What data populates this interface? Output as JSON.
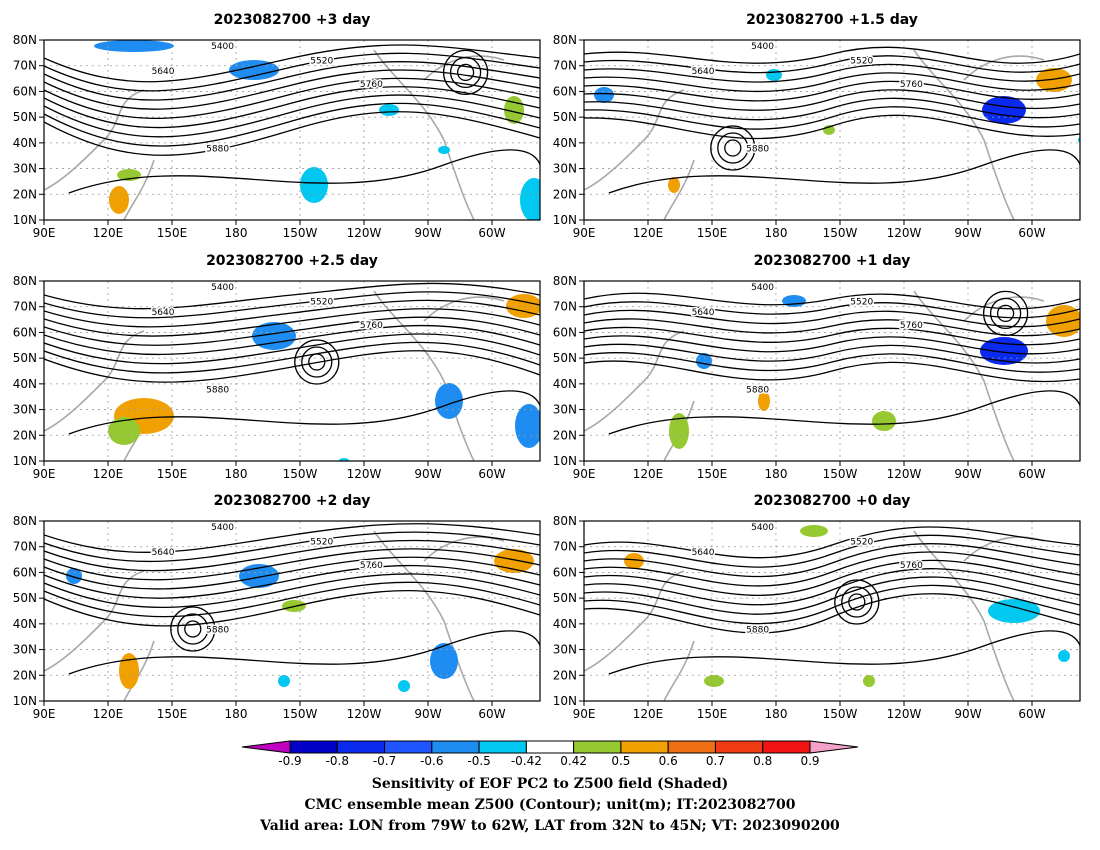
{
  "panels": [
    {
      "title": "2023082700 +3 day"
    },
    {
      "title": "2023082700 +1.5 day"
    },
    {
      "title": "2023082700 +2.5 day"
    },
    {
      "title": "2023082700 +1 day"
    },
    {
      "title": "2023082700 +2 day"
    },
    {
      "title": "2023082700 +0 day"
    }
  ],
  "axes": {
    "lat_ticks": [
      "80N",
      "70N",
      "60N",
      "50N",
      "40N",
      "30N",
      "20N",
      "10N"
    ],
    "lon_ticks": [
      "90E",
      "120E",
      "150E",
      "180",
      "150W",
      "120W",
      "90W",
      "60W"
    ]
  },
  "contour_levels": [
    "5400",
    "5520",
    "5640",
    "5760",
    "5880"
  ],
  "colorbar": {
    "ticks": [
      "-0.9",
      "-0.8",
      "-0.7",
      "-0.6",
      "-0.5",
      "-0.42",
      "0.42",
      "0.5",
      "0.6",
      "0.7",
      "0.8",
      "0.9"
    ],
    "colors": [
      "#c000c0",
      "#0000c8",
      "#0a2af0",
      "#1e55ff",
      "#1e8cf0",
      "#00c8f0",
      "#ffffff",
      "#96c832",
      "#f0a000",
      "#f06e14",
      "#f03c14",
      "#f01414",
      "#f4a0c8"
    ]
  },
  "captions": {
    "line1": "Sensitivity of EOF PC2 to Z500 field (Shaded)",
    "line2": "CMC ensemble mean Z500 (Contour); unit(m); IT:2023082700",
    "line3": "Valid area: LON from 79W to 62W, LAT from 32N to 45N; VT: 2023090200"
  }
}
